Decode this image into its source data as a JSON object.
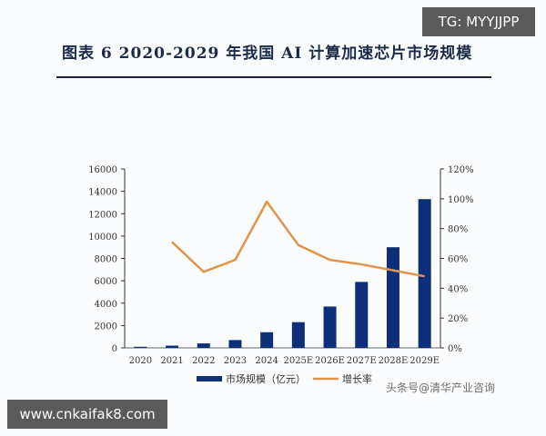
{
  "title": "图表 6   2020-2029 年我国 AI 计算加速芯片市场规模",
  "badges": {
    "top_right": "TG: MYYJJPP",
    "bottom_left": "www.cnkaifak8.com"
  },
  "watermark": "头条号@清华产业咨询",
  "colors": {
    "bar": "#0d2f7a",
    "line": "#e0954a",
    "axis": "#333333"
  },
  "chart_data": {
    "type": "bar",
    "title": "2020-2029 年我国 AI 计算加速芯片市场规模",
    "categories": [
      "2020",
      "2021",
      "2022",
      "2023",
      "2024",
      "2025E",
      "2026E",
      "2027E",
      "2028E",
      "2029E"
    ],
    "series": [
      {
        "name": "市场规模（亿元）",
        "type": "bar",
        "axis": "left",
        "values": [
          100,
          200,
          400,
          700,
          1400,
          2300,
          3700,
          5900,
          9000,
          13300
        ]
      },
      {
        "name": "增长率",
        "type": "line",
        "axis": "right",
        "values": [
          null,
          71,
          51,
          59,
          98,
          69,
          59,
          56,
          52,
          48
        ]
      }
    ],
    "ylim_left": [
      0,
      16000
    ],
    "yticks_left": [
      "0",
      "2000",
      "4000",
      "6000",
      "8000",
      "10000",
      "12000",
      "14000",
      "16000"
    ],
    "ylim_right": [
      0,
      120
    ],
    "yticks_right": [
      "0%",
      "20%",
      "40%",
      "60%",
      "80%",
      "100%",
      "120%"
    ],
    "grid": false,
    "legend_position": "bottom",
    "legend": [
      "市场规模（亿元）",
      "增长率"
    ]
  }
}
